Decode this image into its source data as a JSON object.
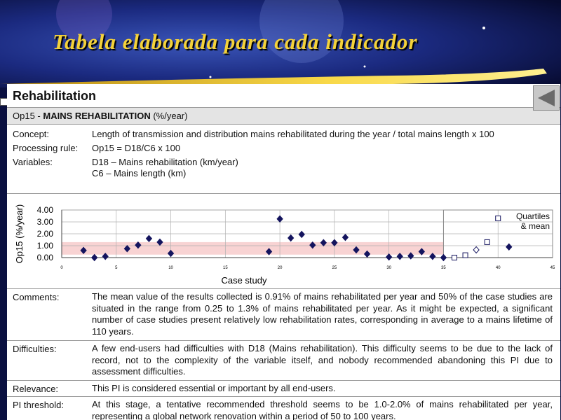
{
  "slide_title": "Tabela elaborada para cada indicador",
  "section": "Rehabilitation",
  "indicator": {
    "code": "Op15 -",
    "name": "MAINS REHABILITATION",
    "unit": "(%/year)"
  },
  "definition": [
    {
      "label": "Concept:",
      "lines": [
        "Length of transmission and distribution mains rehabilitated during the year / total mains length x 100"
      ]
    },
    {
      "label": "Processing rule:",
      "lines": [
        "Op15 = D18/C6 x 100"
      ]
    },
    {
      "label": "Variables:",
      "lines": [
        "D18 – Mains rehabilitation (km/year)",
        "C6 – Mains length (km)"
      ]
    }
  ],
  "notes": [
    {
      "label": "Comments:",
      "text": "The mean value of the results collected is 0.91% of mains rehabilitated per year and 50% of the case studies are situated in the range from 0.25 to 1.3% of mains rehabilitated per year. As it might be expected, a significant number of case studies present relatively low rehabilitation rates, corresponding in average to a mains lifetime of 110 years."
    },
    {
      "label": "Difficulties:",
      "text": "A few end-users had difficulties with D18 (Mains rehabilitation). This difficulty seems to be due to the lack of record, not to the complexity of the variable itself, and nobody recommended abandoning this PI due to assessment difficulties."
    },
    {
      "label": "Relevance:",
      "text": "This PI is considered essential or important by all end-users."
    },
    {
      "label": "PI threshold:",
      "text": "At this stage, a tentative recommended threshold seems to be 1.0-2.0% of mains rehabilitated per year, representing a global network renovation within a period of 50 to 100 years."
    }
  ],
  "chart_data": {
    "type": "scatter",
    "x_label": "Case study",
    "y_label": "Op15 (%/year)",
    "xlim": [
      0,
      45
    ],
    "xticks": [
      0,
      5,
      10,
      15,
      20,
      25,
      30,
      35,
      40,
      45
    ],
    "ylim": [
      0,
      4
    ],
    "yticks": [
      {
        "value": 0,
        "label": "0.00"
      },
      {
        "value": 1,
        "label": "1.00"
      },
      {
        "value": 2,
        "label": "2.00"
      },
      {
        "value": 3,
        "label": "3.00"
      },
      {
        "value": 4,
        "label": "4.00"
      }
    ],
    "grid": true,
    "band": {
      "x": [
        0,
        35
      ],
      "y": [
        0.25,
        1.3
      ],
      "color": "#f8d3d3"
    },
    "series": [
      {
        "color": "#14145e",
        "marker": "diamond",
        "x": [
          2,
          3,
          4,
          6,
          7,
          8,
          9,
          10,
          19,
          20,
          21,
          22,
          23,
          24,
          25,
          26,
          27,
          28,
          30,
          31,
          32,
          33,
          34,
          35
        ],
        "values": [
          0.6,
          0,
          0.1,
          0.75,
          1.05,
          1.6,
          1.3,
          0.35,
          0.5,
          3.25,
          1.65,
          1.95,
          1.05,
          1.25,
          1.25,
          1.7,
          0.65,
          0.3,
          0.05,
          0.1,
          0.15,
          0.5,
          0.1,
          0
        ]
      },
      {
        "name": "Quartiles & mean",
        "color": "#14145e",
        "markers": [
          "square-open",
          "square-open",
          "diamond-open",
          "square-open",
          "square-open",
          "diamond"
        ],
        "x": [
          36,
          37,
          38,
          39,
          40,
          41
        ],
        "values": [
          0,
          0.2,
          0.65,
          1.3,
          3.3,
          0.9
        ]
      }
    ],
    "legend": "top-right"
  }
}
